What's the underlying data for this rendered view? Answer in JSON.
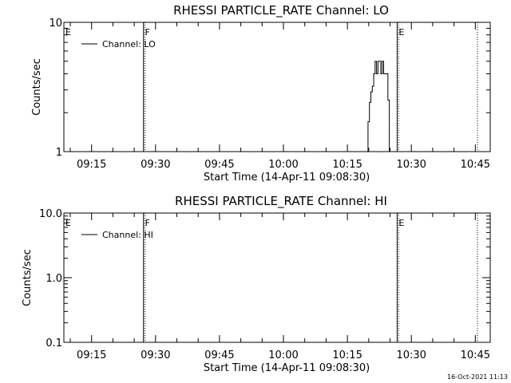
{
  "chart_data": [
    {
      "type": "line",
      "title": "RHESSI PARTICLE_RATE Channel: LO",
      "xlabel": "Start Time (14-Apr-11 09:08:30)",
      "ylabel": "Counts/sec",
      "yscale": "log",
      "ylim": [
        1,
        10
      ],
      "xlim": [
        "09:08:30",
        "10:48:30"
      ],
      "x_ticks": [
        "09:15",
        "09:30",
        "09:45",
        "10:00",
        "10:15",
        "10:30",
        "10:45"
      ],
      "y_ticks": [
        "1",
        "10"
      ],
      "legend": {
        "position": "top-left",
        "entries": [
          "Channel: LO"
        ]
      },
      "markers": [
        {
          "label": "E",
          "time": "09:08:30",
          "style": "solid"
        },
        {
          "label": "F",
          "time": "09:27:10",
          "style": "solid"
        },
        {
          "label": "",
          "time": "09:27:30",
          "style": "dotted"
        },
        {
          "label": "E",
          "time": "10:26:40",
          "style": "solid"
        },
        {
          "label": "",
          "time": "10:27:00",
          "style": "dotted"
        },
        {
          "label": "",
          "time": "10:45:30",
          "style": "dotted"
        }
      ],
      "series": [
        {
          "name": "Channel: LO",
          "step": true,
          "x": [
            "10:19:30",
            "10:19:50",
            "10:20:10",
            "10:20:30",
            "10:20:50",
            "10:21:10",
            "10:21:30",
            "10:21:50",
            "10:22:10",
            "10:22:30",
            "10:22:50",
            "10:23:10",
            "10:23:30",
            "10:23:50",
            "10:24:10",
            "10:24:30",
            "10:24:50"
          ],
          "y": [
            1,
            1.7,
            2.4,
            2.9,
            3.2,
            4.0,
            5.0,
            4.0,
            5.0,
            5.0,
            4.0,
            5.0,
            4.0,
            4.0,
            4.0,
            2.5,
            1
          ]
        }
      ],
      "grid": false
    },
    {
      "type": "line",
      "title": "RHESSI PARTICLE_RATE Channel: HI",
      "xlabel": "Start Time (14-Apr-11 09:08:30)",
      "ylabel": "Counts/sec",
      "yscale": "log",
      "ylim": [
        0.1,
        10
      ],
      "xlim": [
        "09:08:30",
        "10:48:30"
      ],
      "x_ticks": [
        "09:15",
        "09:30",
        "09:45",
        "10:00",
        "10:15",
        "10:30",
        "10:45"
      ],
      "y_ticks": [
        "0.1",
        "1.0",
        "10.0"
      ],
      "legend": {
        "position": "top-left",
        "entries": [
          "Channel: HI"
        ]
      },
      "markers": [
        {
          "label": "E",
          "time": "09:08:30",
          "style": "solid"
        },
        {
          "label": "F",
          "time": "09:27:10",
          "style": "solid"
        },
        {
          "label": "",
          "time": "09:27:30",
          "style": "dotted"
        },
        {
          "label": "E",
          "time": "10:26:40",
          "style": "solid"
        },
        {
          "label": "",
          "time": "10:27:00",
          "style": "dotted"
        },
        {
          "label": "",
          "time": "10:45:30",
          "style": "dotted"
        }
      ],
      "series": [
        {
          "name": "Channel: HI",
          "step": true,
          "x": [],
          "y": []
        }
      ],
      "grid": false
    }
  ],
  "footer": {
    "timestamp": "16-Oct-2021 11:13"
  }
}
